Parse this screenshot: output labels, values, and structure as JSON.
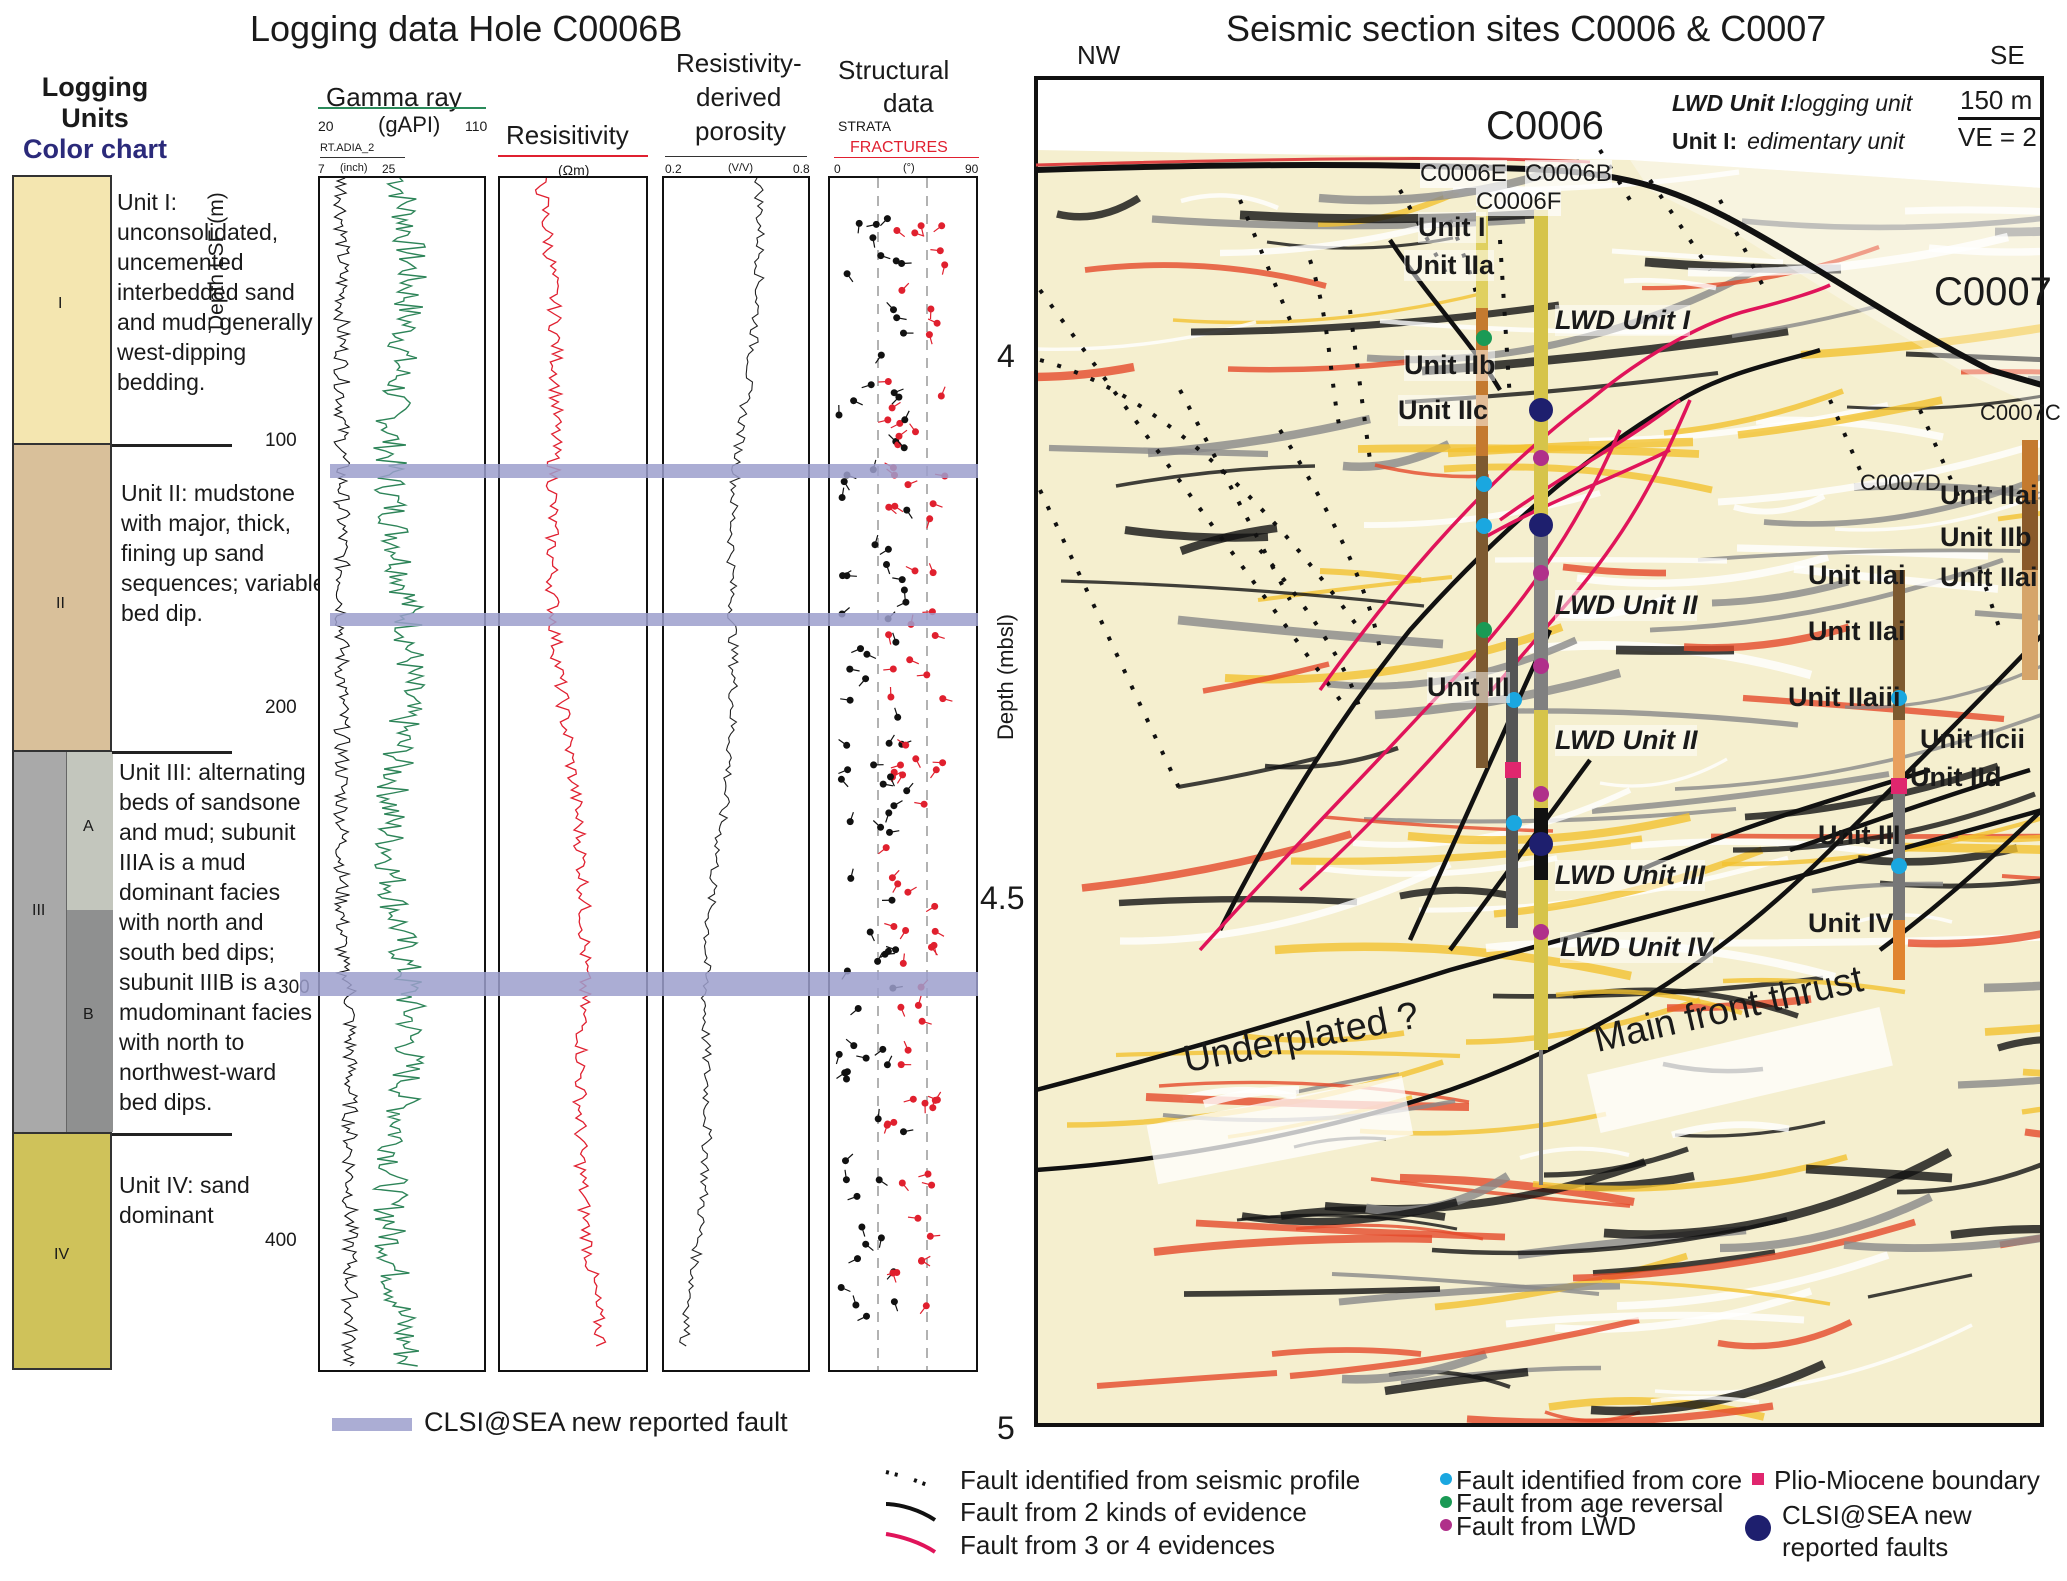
{
  "left": {
    "title": "Logging data Hole C0006B",
    "units_header": {
      "line1": "Logging",
      "line2": "Units",
      "line3": "Color chart"
    },
    "units": [
      {
        "roman": "I",
        "desc": "Unit I: unconsolidated, uncemented interbedded sand and mud; generally west-dipping bedding.",
        "color": "#f4e6b0"
      },
      {
        "roman": "II",
        "desc": "Unit II: mudstone with major, thick, fining up sand sequences; variable bed dip.",
        "color": "#d9c09a"
      },
      {
        "roman": "III",
        "sub": [
          "A",
          "B"
        ],
        "desc": "Unit III: alternating beds of sandsone and mud; subunit IIIA is a mud dominant facies with north and south bed dips; subunit IIIB is a mudominant facies with north to northwest-ward bed dips.",
        "color": "#a8a8a8"
      },
      {
        "roman": "IV",
        "desc": "Unit IV: sand dominant",
        "color": "#cfc25a"
      }
    ],
    "depth_axis": {
      "label": "Depth LSF (m)",
      "ticks": [
        "100",
        "200",
        "300",
        "400"
      ]
    },
    "tracks": {
      "gamma": {
        "title": "Gamma ray",
        "unit": "(gAPI)",
        "min": "20",
        "max": "110",
        "sub": "RT.ADIA_2",
        "sub_unit": "(inch)",
        "sub_min": "7",
        "sub_max": "25"
      },
      "resistivity": {
        "title": "Resisitivity",
        "unit": "(Ωm)"
      },
      "porosity": {
        "title1": "Resistivity-",
        "title2": "derived",
        "title3": "porosity",
        "unit": "(V/V)",
        "min": "0.2",
        "max": "0.8"
      },
      "structural": {
        "title1": "Structural",
        "title2": "data",
        "strata": "STRATA",
        "fractures": "FRACTURES",
        "unit": "(°)",
        "min": "0",
        "max": "90"
      }
    },
    "fault_legend": "CLSI@SEA new reported fault"
  },
  "right": {
    "title": "Seismic section sites C0006 & C0007",
    "nw": "NW",
    "se": "SE",
    "scale": "150 m",
    "ve": "VE = 2",
    "key1_a": "LWD Unit I:",
    "key1_b": "logging unit",
    "key2_a": "Unit I:",
    "key2_b": "edimentary unit",
    "depth_label": "Depth (mbsl)",
    "depth_ticks": [
      "4",
      "4.5",
      "5"
    ],
    "site_c0006": "C0006",
    "site_c0007": "C0007",
    "holes": {
      "e": "C0006E",
      "b": "C0006B",
      "f": "C0006F",
      "c7c": "C0007C",
      "c7d": "C0007D"
    },
    "labels": {
      "u1": "Unit I",
      "u2a": "Unit IIa",
      "u2b": "Unit IIb",
      "u2c": "Unit IIc",
      "u3": "Unit III",
      "lwd1": "LWD Unit I",
      "lwd2a": "LWD Unit II",
      "lwd2b": "LWD Unit II",
      "lwd3": "LWD Unit III",
      "lwd4": "LWD Unit IV",
      "c7_u2ai_1": "Unit IIai",
      "c7_u2b": "Unit IIb",
      "c7_u2ai_2": "Unit IIai",
      "c7d_u2ai_1": "Unit IIai",
      "c7d_u2ai_2": "Unit IIai",
      "c7d_u2aiii": "Unit IIaiii",
      "c7d_u2cii": "Unit IIcii",
      "c7d_u2d": "Unit IId",
      "c7d_u3": "Unit III",
      "c7d_u4": "Unit IV",
      "underplated": "Underplated ?",
      "mft": "Main front thrust"
    },
    "legend": {
      "dotted": "Fault identified from seismic profile",
      "black": "Fault from 2 kinds of evidence",
      "red": "Fault from 3 or 4 evidences",
      "core": "Fault identified from core",
      "age": "Fault from age reversal",
      "lwd": "Fault from LWD",
      "plio": "Plio-Miocene boundary",
      "clsi1": "CLSI@SEA new",
      "clsi2": "reported faults"
    },
    "colors": {
      "core": "#1aa7e0",
      "age": "#1a9a55",
      "lwd": "#b0308a",
      "plio": "#e0266e",
      "clsi": "#1e1f6e",
      "red_fault": "#e0145a"
    }
  }
}
